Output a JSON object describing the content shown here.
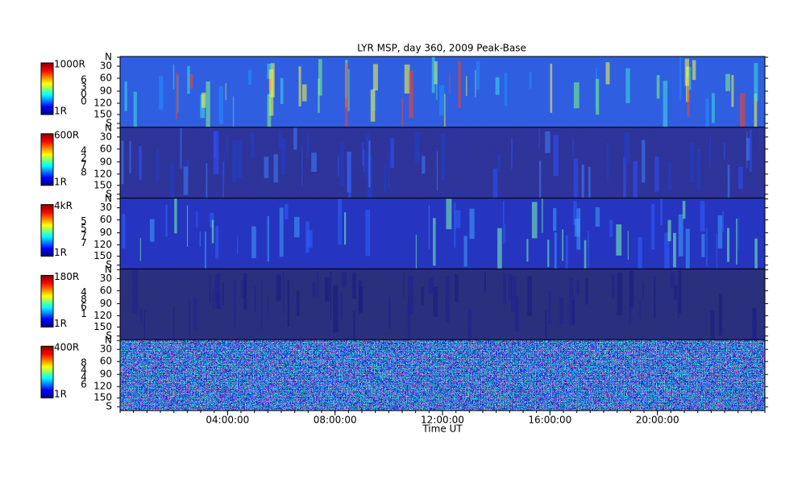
{
  "title": "LYR MSP, day 360, 2009 Peak-Base",
  "x_axis": {
    "label": "Time UT",
    "ticks": [
      "04:00:00",
      "08:00:00",
      "12:00:00",
      "16:00:00",
      "20:00:00"
    ]
  },
  "y_ticks": [
    "N",
    "30",
    "60",
    "90",
    "120",
    "150",
    "S"
  ],
  "panels": [
    {
      "scale_max": "1000R",
      "scale_min": "1R",
      "channel": [
        "6",
        "3",
        "0",
        "0"
      ]
    },
    {
      "scale_max": "600R",
      "scale_min": "1R",
      "channel": [
        "4",
        "2",
        "7",
        "8"
      ]
    },
    {
      "scale_max": "4kR",
      "scale_min": "1R",
      "channel": [
        "5",
        "5",
        "7",
        "7"
      ]
    },
    {
      "scale_max": "180R",
      "scale_min": "1R",
      "channel": [
        "4",
        "8",
        "6",
        "1"
      ]
    },
    {
      "scale_max": "400R",
      "scale_min": "1R",
      "channel": [
        "8",
        "4",
        "4",
        "6"
      ]
    }
  ]
}
